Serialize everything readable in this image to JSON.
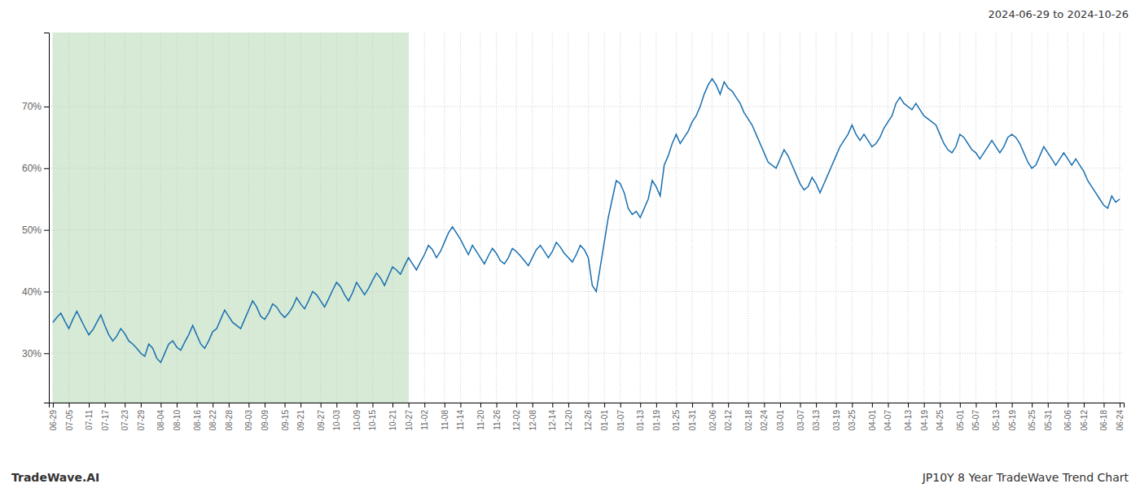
{
  "chart_data": {
    "type": "line",
    "title": "JP10Y 8 Year TradeWave Trend Chart",
    "subtitle": "2024-06-29 to 2024-10-26",
    "annotations": [
      "TradeWave.AI"
    ],
    "color": "#1a6faf",
    "grid": true,
    "shaded_region": {
      "from": "06-29",
      "to": "10-27",
      "color": "#d6ead6"
    },
    "ylim": [
      22,
      82
    ],
    "yticks": [
      {
        "value": 30,
        "label": "30%"
      },
      {
        "value": 40,
        "label": "40%"
      },
      {
        "value": 50,
        "label": "50%"
      },
      {
        "value": 60,
        "label": "60%"
      },
      {
        "value": 70,
        "label": "70%"
      }
    ],
    "categories": [
      "06-29",
      null,
      null,
      null,
      "07-05",
      null,
      null,
      null,
      null,
      "07-11",
      null,
      null,
      null,
      "07-17",
      null,
      null,
      null,
      null,
      "07-23",
      null,
      null,
      null,
      "07-29",
      null,
      null,
      null,
      null,
      "08-04",
      null,
      null,
      null,
      "08-10",
      null,
      null,
      null,
      null,
      "08-16",
      null,
      null,
      null,
      "08-22",
      null,
      null,
      null,
      "08-28",
      null,
      null,
      null,
      null,
      "09-03",
      null,
      null,
      null,
      "09-09",
      null,
      null,
      null,
      null,
      "09-15",
      null,
      null,
      null,
      "09-21",
      null,
      null,
      null,
      null,
      "09-27",
      null,
      null,
      null,
      "10-03",
      null,
      null,
      null,
      null,
      "10-09",
      null,
      null,
      null,
      "10-15",
      null,
      null,
      null,
      null,
      "10-21",
      null,
      null,
      null,
      "10-27",
      null,
      null,
      null,
      "11-02",
      null,
      null,
      null,
      null,
      "11-08",
      null,
      null,
      null,
      "11-14",
      null,
      null,
      null,
      null,
      "11-20",
      null,
      null,
      null,
      "11-26",
      null,
      null,
      null,
      null,
      "12-02",
      null,
      null,
      null,
      "12-08",
      null,
      null,
      null,
      null,
      "12-14",
      null,
      null,
      null,
      "12-20",
      null,
      null,
      null,
      null,
      "12-26",
      null,
      null,
      null,
      "01-01",
      null,
      null,
      null,
      "01-07",
      null,
      null,
      null,
      null,
      "01-13",
      null,
      null,
      null,
      "01-19",
      null,
      null,
      null,
      null,
      "01-25",
      null,
      null,
      null,
      "01-31",
      null,
      null,
      null,
      null,
      "02-06",
      null,
      null,
      null,
      "02-12",
      null,
      null,
      null,
      null,
      "02-18",
      null,
      null,
      null,
      "02-24",
      null,
      null,
      null,
      "03-01",
      null,
      null,
      null,
      null,
      "03-07",
      null,
      null,
      null,
      "03-13",
      null,
      null,
      null,
      null,
      "03-19",
      null,
      null,
      null,
      "03-25",
      null,
      null,
      null,
      null,
      "04-01",
      null,
      null,
      null,
      "04-07",
      null,
      null,
      null,
      null,
      "04-13",
      null,
      null,
      null,
      "04-19",
      null,
      null,
      null,
      "04-25",
      null,
      null,
      null,
      null,
      "05-01",
      null,
      null,
      null,
      "05-07",
      null,
      null,
      null,
      null,
      "05-13",
      null,
      null,
      null,
      "05-19",
      null,
      null,
      null,
      null,
      "05-25",
      null,
      null,
      null,
      "05-31",
      null,
      null,
      null,
      null,
      "06-06",
      null,
      null,
      null,
      "06-12",
      null,
      null,
      null,
      null,
      "06-18",
      null,
      null,
      null,
      "06-24"
    ],
    "values": [
      35.0,
      35.8,
      36.5,
      35.2,
      34.0,
      35.5,
      36.8,
      35.5,
      34.2,
      33.0,
      33.8,
      35.0,
      36.2,
      34.5,
      33.0,
      32.0,
      32.8,
      34.0,
      33.2,
      32.0,
      31.5,
      30.8,
      30.0,
      29.5,
      31.5,
      30.8,
      29.2,
      28.5,
      30.0,
      31.5,
      32.0,
      31.0,
      30.5,
      31.8,
      33.0,
      34.5,
      33.0,
      31.5,
      30.8,
      32.0,
      33.5,
      34.0,
      35.5,
      37.0,
      36.0,
      35.0,
      34.5,
      34.0,
      35.5,
      37.0,
      38.5,
      37.5,
      36.0,
      35.5,
      36.5,
      38.0,
      37.5,
      36.5,
      35.8,
      36.5,
      37.5,
      39.0,
      38.0,
      37.2,
      38.5,
      40.0,
      39.5,
      38.5,
      37.5,
      38.8,
      40.2,
      41.5,
      40.8,
      39.5,
      38.5,
      39.8,
      41.5,
      40.5,
      39.5,
      40.5,
      41.8,
      43.0,
      42.2,
      41.0,
      42.5,
      44.0,
      43.5,
      42.8,
      44.2,
      45.5,
      44.5,
      43.5,
      44.8,
      46.0,
      47.5,
      46.8,
      45.5,
      46.5,
      48.0,
      49.5,
      50.5,
      49.5,
      48.5,
      47.2,
      46.0,
      47.5,
      46.5,
      45.5,
      44.5,
      45.8,
      47.0,
      46.2,
      45.0,
      44.5,
      45.5,
      47.0,
      46.5,
      45.8,
      45.0,
      44.2,
      45.5,
      46.8,
      47.5,
      46.5,
      45.5,
      46.5,
      48.0,
      47.2,
      46.2,
      45.5,
      44.8,
      46.0,
      47.5,
      46.8,
      45.5,
      41.0,
      40.0,
      44.0,
      48.0,
      52.0,
      55.0,
      58.0,
      57.5,
      56.0,
      53.5,
      52.5,
      53.0,
      52.0,
      53.5,
      55.0,
      58.0,
      57.0,
      55.5,
      60.5,
      62.0,
      64.0,
      65.5,
      64.0,
      65.0,
      66.0,
      67.5,
      68.5,
      70.0,
      72.0,
      73.5,
      74.5,
      73.5,
      72.0,
      74.0,
      73.0,
      72.5,
      71.5,
      70.5,
      69.0,
      68.0,
      67.0,
      65.5,
      64.0,
      62.5,
      61.0,
      60.5,
      60.0,
      61.5,
      63.0,
      62.0,
      60.5,
      59.0,
      57.5,
      56.5,
      57.0,
      58.5,
      57.5,
      56.0,
      57.5,
      59.0,
      60.5,
      62.0,
      63.5,
      64.5,
      65.5,
      67.0,
      65.5,
      64.5,
      65.5,
      64.5,
      63.5,
      64.0,
      65.0,
      66.5,
      67.5,
      68.5,
      70.5,
      71.5,
      70.5,
      70.0,
      69.5,
      70.5,
      69.5,
      68.5,
      68.0,
      67.5,
      67.0,
      65.5,
      64.0,
      63.0,
      62.5,
      63.5,
      65.5,
      65.0,
      64.0,
      63.0,
      62.5,
      61.5,
      62.5,
      63.5,
      64.5,
      63.5,
      62.5,
      63.5,
      65.0,
      65.5,
      65.0,
      64.0,
      62.5,
      61.0,
      60.0,
      60.5,
      62.0,
      63.5,
      62.5,
      61.5,
      60.5,
      61.5,
      62.5,
      61.5,
      60.5,
      61.5,
      60.5,
      59.5,
      58.0,
      57.0,
      56.0,
      55.0,
      54.0,
      53.5,
      55.5,
      54.5,
      55.0
    ]
  }
}
